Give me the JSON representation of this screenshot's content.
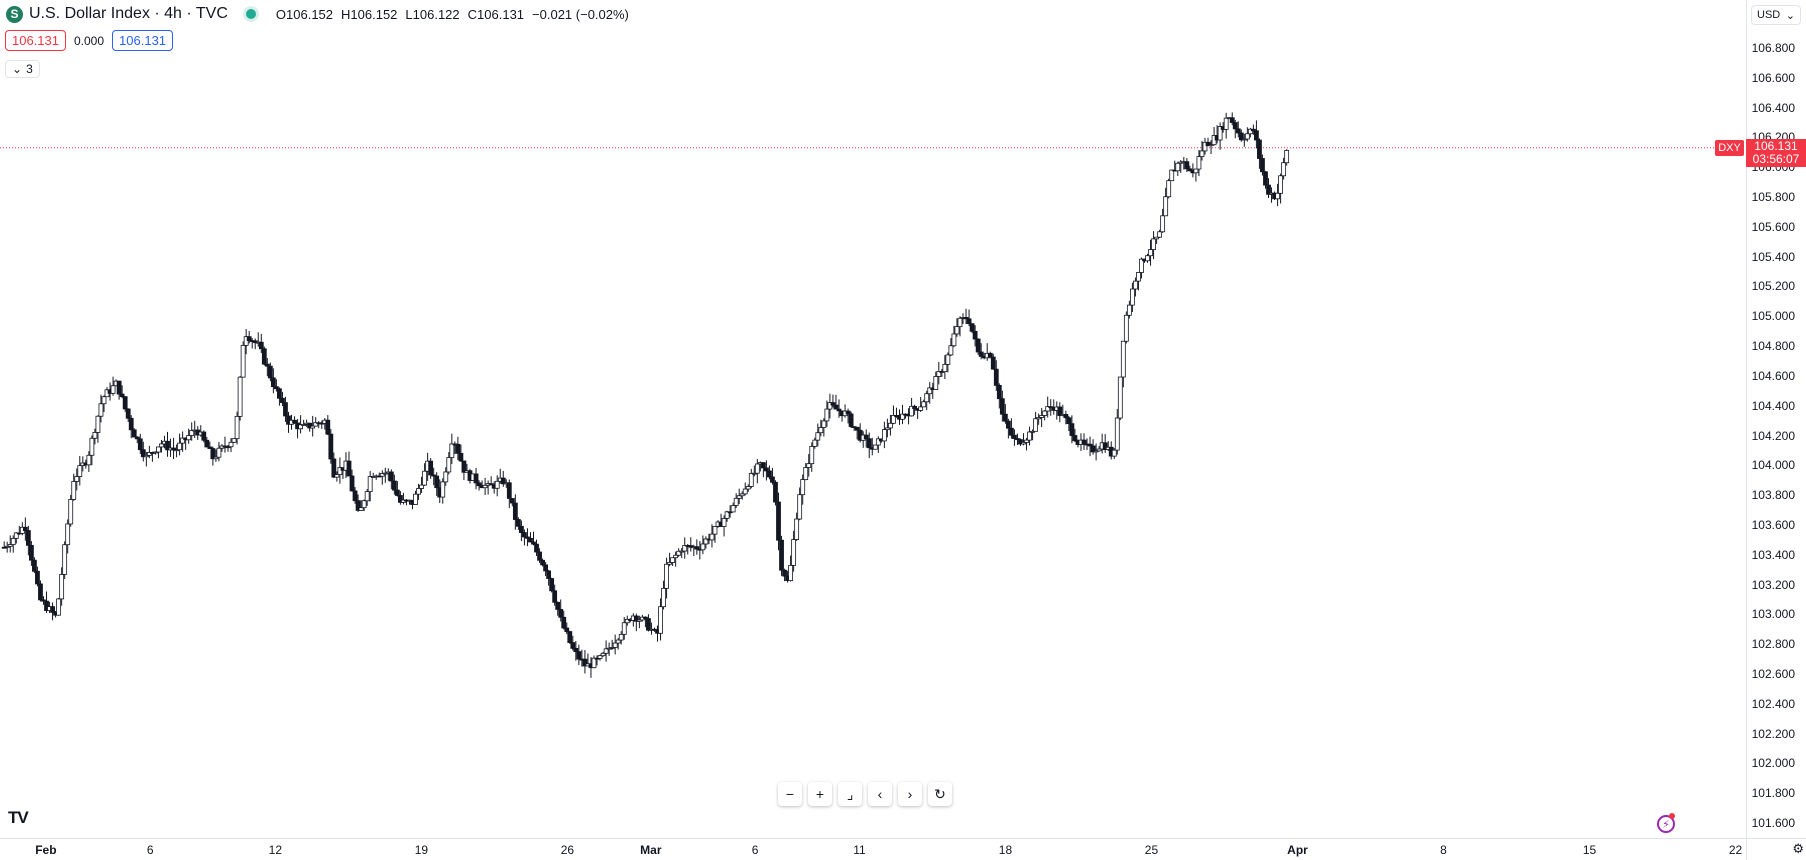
{
  "header": {
    "title": "U.S. Dollar Index · 4h · TVC",
    "symbol_icon": "S",
    "open_label": "O",
    "open": "106.152",
    "high_label": "H",
    "high": "106.152",
    "low_label": "L",
    "low": "106.122",
    "close_label": "C",
    "close": "106.131",
    "change": "−0.021 (−0.02%)",
    "bid": "106.131",
    "spread": "0.000",
    "ask": "106.131",
    "indicators_count": "3",
    "currency": "USD"
  },
  "last_price": {
    "ticker": "DXY",
    "price": "106.131",
    "countdown": "03:56:07"
  },
  "colors": {
    "up": "#131722",
    "down": "#131722",
    "last_line": "#f23645"
  },
  "icons": [
    "tradingview-logo-icon",
    "zoom-out-icon",
    "zoom-in-icon",
    "reset-scale-icon",
    "scroll-left-icon",
    "scroll-right-icon",
    "reset-chart-icon",
    "lightning-icon",
    "settings-icon",
    "chevron-down-icon"
  ],
  "toolbar": {
    "zoom_out": "−",
    "zoom_in": "+",
    "reset": "⌟",
    "left": "‹",
    "right": "›",
    "refresh": "↻"
  },
  "chart_data": {
    "type": "candlestick",
    "title": "U.S. Dollar Index · 4h · TVC",
    "ylabel": "",
    "xlabel": "",
    "ylim": [
      101.5,
      106.9
    ],
    "yticks": [
      "106.800",
      "106.600",
      "106.400",
      "106.200",
      "106.000",
      "105.800",
      "105.600",
      "105.400",
      "105.200",
      "105.000",
      "104.800",
      "104.600",
      "104.400",
      "104.200",
      "104.000",
      "103.800",
      "103.600",
      "103.400",
      "103.200",
      "103.000",
      "102.800",
      "102.600",
      "102.400",
      "102.200",
      "102.000",
      "101.800",
      "101.600"
    ],
    "xticks": [
      {
        "label": "Feb",
        "bold": true,
        "day": 0
      },
      {
        "label": "6",
        "bold": false,
        "day": 5
      },
      {
        "label": "12",
        "bold": false,
        "day": 11
      },
      {
        "label": "19",
        "bold": false,
        "day": 18
      },
      {
        "label": "26",
        "bold": false,
        "day": 25
      },
      {
        "label": "Mar",
        "bold": true,
        "day": 29
      },
      {
        "label": "6",
        "bold": false,
        "day": 34
      },
      {
        "label": "11",
        "bold": false,
        "day": 39
      },
      {
        "label": "18",
        "bold": false,
        "day": 46
      },
      {
        "label": "25",
        "bold": false,
        "day": 53
      },
      {
        "label": "Apr",
        "bold": true,
        "day": 60
      },
      {
        "label": "8",
        "bold": false,
        "day": 67
      },
      {
        "label": "15",
        "bold": false,
        "day": 74
      },
      {
        "label": "22",
        "bold": false,
        "day": 81
      }
    ],
    "x_range_days": [
      -2.2,
      81.5
    ],
    "last_value": 106.131,
    "keypoints": [
      {
        "day": -2.0,
        "price": 103.45
      },
      {
        "day": -1.0,
        "price": 103.6
      },
      {
        "day": -0.3,
        "price": 103.1
      },
      {
        "day": 0.5,
        "price": 102.98
      },
      {
        "day": 1.3,
        "price": 103.9
      },
      {
        "day": 2.0,
        "price": 104.05
      },
      {
        "day": 2.7,
        "price": 104.45
      },
      {
        "day": 3.4,
        "price": 104.55
      },
      {
        "day": 4.1,
        "price": 104.25
      },
      {
        "day": 4.8,
        "price": 104.05
      },
      {
        "day": 5.5,
        "price": 104.15
      },
      {
        "day": 6.2,
        "price": 104.1
      },
      {
        "day": 7.2,
        "price": 104.25
      },
      {
        "day": 8.0,
        "price": 104.05
      },
      {
        "day": 9.1,
        "price": 104.2
      },
      {
        "day": 9.5,
        "price": 104.9
      },
      {
        "day": 10.2,
        "price": 104.8
      },
      {
        "day": 10.9,
        "price": 104.55
      },
      {
        "day": 11.6,
        "price": 104.3
      },
      {
        "day": 12.3,
        "price": 104.25
      },
      {
        "day": 13.4,
        "price": 104.3
      },
      {
        "day": 13.8,
        "price": 103.95
      },
      {
        "day": 14.4,
        "price": 104.0
      },
      {
        "day": 15.0,
        "price": 103.65
      },
      {
        "day": 15.6,
        "price": 103.95
      },
      {
        "day": 16.4,
        "price": 103.95
      },
      {
        "day": 17.0,
        "price": 103.75
      },
      {
        "day": 17.6,
        "price": 103.75
      },
      {
        "day": 18.3,
        "price": 104.0
      },
      {
        "day": 18.9,
        "price": 103.8
      },
      {
        "day": 19.5,
        "price": 104.2
      },
      {
        "day": 20.1,
        "price": 103.95
      },
      {
        "day": 20.6,
        "price": 103.9
      },
      {
        "day": 21.2,
        "price": 103.85
      },
      {
        "day": 22.0,
        "price": 103.9
      },
      {
        "day": 22.7,
        "price": 103.55
      },
      {
        "day": 23.4,
        "price": 103.45
      },
      {
        "day": 24.0,
        "price": 103.3
      },
      {
        "day": 24.7,
        "price": 102.95
      },
      {
        "day": 25.3,
        "price": 102.75
      },
      {
        "day": 25.9,
        "price": 102.65
      },
      {
        "day": 26.6,
        "price": 102.7
      },
      {
        "day": 27.4,
        "price": 102.85
      },
      {
        "day": 28.1,
        "price": 103.0
      },
      {
        "day": 28.7,
        "price": 102.95
      },
      {
        "day": 29.3,
        "price": 102.85
      },
      {
        "day": 29.7,
        "price": 103.3
      },
      {
        "day": 30.5,
        "price": 103.45
      },
      {
        "day": 31.3,
        "price": 103.45
      },
      {
        "day": 32.0,
        "price": 103.55
      },
      {
        "day": 32.8,
        "price": 103.7
      },
      {
        "day": 33.5,
        "price": 103.85
      },
      {
        "day": 34.2,
        "price": 104.0
      },
      {
        "day": 34.9,
        "price": 103.9
      },
      {
        "day": 35.2,
        "price": 103.35
      },
      {
        "day": 35.6,
        "price": 103.2
      },
      {
        "day": 36.1,
        "price": 103.8
      },
      {
        "day": 36.8,
        "price": 104.15
      },
      {
        "day": 37.5,
        "price": 104.4
      },
      {
        "day": 38.3,
        "price": 104.35
      },
      {
        "day": 39.0,
        "price": 104.2
      },
      {
        "day": 39.7,
        "price": 104.1
      },
      {
        "day": 40.5,
        "price": 104.3
      },
      {
        "day": 41.2,
        "price": 104.35
      },
      {
        "day": 41.9,
        "price": 104.4
      },
      {
        "day": 42.6,
        "price": 104.55
      },
      {
        "day": 43.3,
        "price": 104.75
      },
      {
        "day": 43.7,
        "price": 104.95
      },
      {
        "day": 44.2,
        "price": 105.0
      },
      {
        "day": 44.7,
        "price": 104.75
      },
      {
        "day": 45.3,
        "price": 104.75
      },
      {
        "day": 45.9,
        "price": 104.3
      },
      {
        "day": 46.5,
        "price": 104.15
      },
      {
        "day": 47.1,
        "price": 104.2
      },
      {
        "day": 47.7,
        "price": 104.35
      },
      {
        "day": 48.3,
        "price": 104.4
      },
      {
        "day": 48.9,
        "price": 104.3
      },
      {
        "day": 49.5,
        "price": 104.15
      },
      {
        "day": 50.1,
        "price": 104.1
      },
      {
        "day": 50.7,
        "price": 104.15
      },
      {
        "day": 51.2,
        "price": 104.05
      },
      {
        "day": 51.7,
        "price": 104.95
      },
      {
        "day": 52.3,
        "price": 105.3
      },
      {
        "day": 52.9,
        "price": 105.45
      },
      {
        "day": 53.4,
        "price": 105.55
      },
      {
        "day": 53.9,
        "price": 105.95
      },
      {
        "day": 54.4,
        "price": 106.05
      },
      {
        "day": 55.0,
        "price": 105.95
      },
      {
        "day": 55.5,
        "price": 106.15
      },
      {
        "day": 56.1,
        "price": 106.2
      },
      {
        "day": 56.7,
        "price": 106.35
      },
      {
        "day": 57.3,
        "price": 106.2
      },
      {
        "day": 57.9,
        "price": 106.25
      },
      {
        "day": 58.5,
        "price": 105.85
      },
      {
        "day": 59.0,
        "price": 105.8
      },
      {
        "day": 59.5,
        "price": 106.131
      }
    ]
  }
}
